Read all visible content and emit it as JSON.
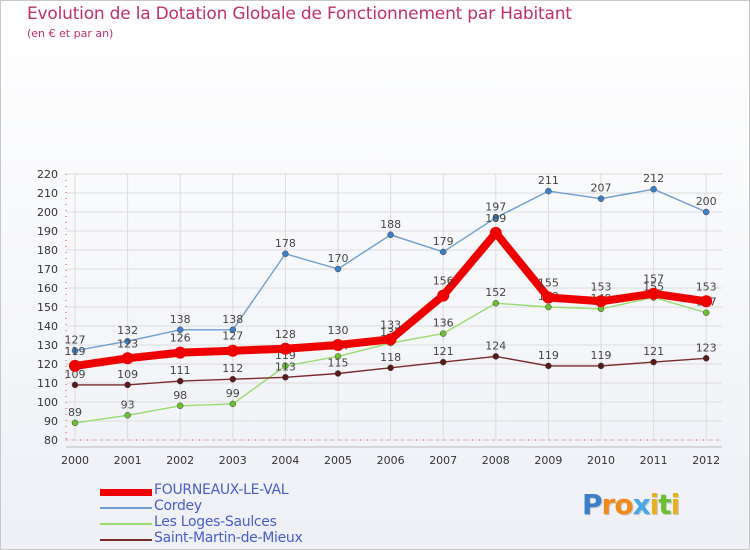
{
  "title": "Evolution de la Dotation Globale de Fonctionnement par Habitant",
  "subtitle": "(en € et par an)",
  "brand": {
    "p": "P",
    "r": "r",
    "o": "o",
    "x": "x",
    "i1": "i",
    "t": "t",
    "i2": "i"
  },
  "legend": [
    {
      "name": "FOURNEAUX-LE-VAL",
      "color": "#ee0000"
    },
    {
      "name": "Cordey",
      "color": "#6e9fd0"
    },
    {
      "name": "Les Loges-Saulces",
      "color": "#98dc6e"
    },
    {
      "name": "Saint-Martin-de-Mieux",
      "color": "#7a2a2a"
    }
  ],
  "chart_data": {
    "type": "line",
    "title": "Evolution de la Dotation Globale de Fonctionnement par Habitant",
    "subtitle": "(en € et par an)",
    "categories": [
      "2000",
      "2001",
      "2002",
      "2003",
      "2004",
      "2005",
      "2006",
      "2007",
      "2008",
      "2009",
      "2010",
      "2011",
      "2012"
    ],
    "ylim": [
      80,
      220
    ],
    "yticks": [
      80,
      90,
      100,
      110,
      120,
      130,
      140,
      150,
      160,
      170,
      180,
      190,
      200,
      210,
      220
    ],
    "grid": true,
    "legend_position": "bottom-left",
    "series": [
      {
        "name": "Cordey",
        "color": "#6e9fd0",
        "marker": "#3a7fc8",
        "values": [
          127,
          132,
          138,
          138,
          178,
          170,
          188,
          179,
          197,
          211,
          207,
          212,
          200
        ]
      },
      {
        "name": "Les Loges-Saulces",
        "color": "#98dc6e",
        "marker": "#6cc030",
        "values": [
          89,
          93,
          98,
          99,
          119,
          124,
          131,
          136,
          152,
          150,
          149,
          155,
          147
        ],
        "labels": [
          "89",
          "93",
          "98",
          "99",
          "119",
          "124",
          "131",
          "136",
          "152",
          "150",
          "149",
          "155",
          "147"
        ]
      },
      {
        "name": "Saint-Martin-de-Mieux",
        "color": "#7a2a2a",
        "marker": "#5a1a1a",
        "values": [
          109,
          109,
          111,
          112,
          113,
          115,
          118,
          121,
          124,
          119,
          119,
          121,
          123
        ]
      },
      {
        "name": "FOURNEAUX-LE-VAL",
        "color": "#ee0000",
        "marker": "#ee0000",
        "values": [
          119,
          123,
          126,
          127,
          128,
          130,
          133,
          156,
          189,
          155,
          153,
          157,
          153
        ]
      }
    ]
  }
}
